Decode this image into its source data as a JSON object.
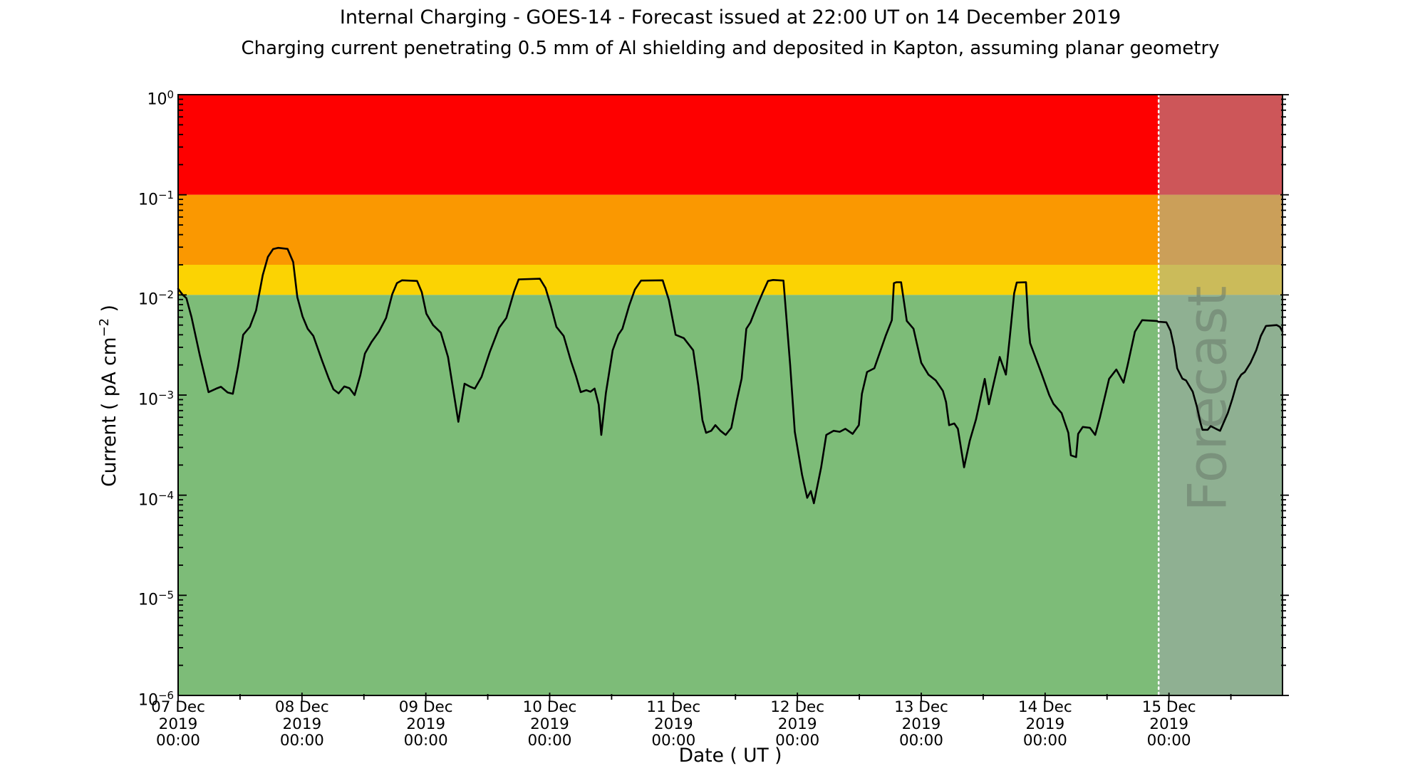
{
  "header": {
    "title": "Internal Charging - GOES-14 - Forecast issued at 22:00 UT on 14 December 2019",
    "subtitle": "Charging current penetrating 0.5 mm of Al shielding and deposited in Kapton, assuming planar geometry"
  },
  "axes": {
    "x": {
      "label": "Date ( UT )",
      "range_hours": [
        0,
        214
      ],
      "major_every_hours": 24,
      "minor_every_hours": 12,
      "ticks": [
        {
          "date": "07 Dec",
          "year": "2019",
          "time": "00:00"
        },
        {
          "date": "08 Dec",
          "year": "2019",
          "time": "00:00"
        },
        {
          "date": "09 Dec",
          "year": "2019",
          "time": "00:00"
        },
        {
          "date": "10 Dec",
          "year": "2019",
          "time": "00:00"
        },
        {
          "date": "11 Dec",
          "year": "2019",
          "time": "00:00"
        },
        {
          "date": "12 Dec",
          "year": "2019",
          "time": "00:00"
        },
        {
          "date": "13 Dec",
          "year": "2019",
          "time": "00:00"
        },
        {
          "date": "14 Dec",
          "year": "2019",
          "time": "00:00"
        },
        {
          "date": "15 Dec",
          "year": "2019",
          "time": "00:00"
        }
      ]
    },
    "y": {
      "label_prefix": "Current ( pA cm",
      "label_sup": "−2",
      "label_suffix": " )",
      "scale": "log",
      "range": [
        1e-06,
        1
      ],
      "tick_base": "10",
      "ticks": [
        {
          "e": 0,
          "t": "0"
        },
        {
          "e": -1,
          "t": "−1"
        },
        {
          "e": -2,
          "t": "−2"
        },
        {
          "e": -3,
          "t": "−3"
        },
        {
          "e": -4,
          "t": "−4"
        },
        {
          "e": -5,
          "t": "−5"
        },
        {
          "e": -6,
          "t": "−6"
        }
      ]
    }
  },
  "bands": [
    {
      "name": "red",
      "min": 0.1,
      "max": 1.0,
      "color": "#FE0000"
    },
    {
      "name": "orange",
      "min": 0.02,
      "max": 0.1,
      "color": "#FA9801"
    },
    {
      "name": "yellow",
      "min": 0.01,
      "max": 0.02,
      "color": "#FBD303"
    },
    {
      "name": "green",
      "min": 1e-06,
      "max": 0.01,
      "color": "#7DBC78"
    }
  ],
  "forecast": {
    "label": "Forecast",
    "start_hours": 190,
    "divider_color": "#ffffff",
    "overlay_color": "rgba(160,164,170,0.52)",
    "watermark_color": "#667466"
  },
  "line_color": "#000000",
  "chart_data": {
    "type": "line",
    "title": "Internal Charging - GOES-14 - Forecast issued at 22:00 UT on 14 December 2019",
    "subtitle": "Charging current penetrating 0.5 mm of Al shielding and deposited in Kapton, assuming planar geometry",
    "xlabel": "Date ( UT )",
    "ylabel": "Current ( pA cm^-2 )",
    "x_unit": "hours since 07 Dec 2019 00:00 UT",
    "x_range_hours": [
      0,
      214
    ],
    "y_scale": "log",
    "ylim": [
      1e-06,
      1
    ],
    "grid": false,
    "thresholds": {
      "red_above": 0.1,
      "orange": [
        0.02,
        0.1
      ],
      "yellow": [
        0.01,
        0.02
      ],
      "green_below": 0.01
    },
    "forecast_start_hours": 190,
    "series": [
      {
        "name": "observed",
        "points": [
          [
            0,
            0.0115
          ],
          [
            0.9,
            0.01
          ],
          [
            1.6,
            0.0093
          ],
          [
            2.6,
            0.006
          ],
          [
            4.2,
            0.0025
          ],
          [
            5.9,
            0.00107
          ],
          [
            7.4,
            0.00116
          ],
          [
            8.3,
            0.00121
          ],
          [
            9.6,
            0.00106
          ],
          [
            10.6,
            0.00103
          ],
          [
            11.6,
            0.0019
          ],
          [
            12.6,
            0.004
          ],
          [
            13.9,
            0.0048
          ],
          [
            15.1,
            0.007
          ],
          [
            16.4,
            0.0158
          ],
          [
            17.4,
            0.024
          ],
          [
            18.4,
            0.0287
          ],
          [
            19.4,
            0.0295
          ],
          [
            21.2,
            0.0288
          ],
          [
            22.3,
            0.0213
          ],
          [
            23.1,
            0.0095
          ],
          [
            24.1,
            0.0061
          ],
          [
            25.1,
            0.0046
          ],
          [
            26.2,
            0.0039
          ],
          [
            27.9,
            0.0022
          ],
          [
            29.2,
            0.00146
          ],
          [
            30.1,
            0.00114
          ],
          [
            31.1,
            0.00104
          ],
          [
            32.2,
            0.00122
          ],
          [
            33.2,
            0.00117
          ],
          [
            34.2,
            0.001
          ],
          [
            35.3,
            0.00158
          ],
          [
            36.2,
            0.0026
          ],
          [
            37.5,
            0.0034
          ],
          [
            38.9,
            0.0043
          ],
          [
            40.3,
            0.0059
          ],
          [
            41.5,
            0.0102
          ],
          [
            42.4,
            0.0131
          ],
          [
            43.4,
            0.014
          ],
          [
            46.3,
            0.0138
          ],
          [
            47.2,
            0.0107
          ],
          [
            48.1,
            0.0065
          ],
          [
            49.4,
            0.005
          ],
          [
            50.9,
            0.0042
          ],
          [
            52.3,
            0.0024
          ],
          [
            53.4,
            0.00105
          ],
          [
            54.3,
            0.00054
          ],
          [
            55.5,
            0.0013
          ],
          [
            56.5,
            0.00122
          ],
          [
            57.5,
            0.00116
          ],
          [
            58.8,
            0.00152
          ],
          [
            60.4,
            0.0027
          ],
          [
            62.2,
            0.0047
          ],
          [
            63.6,
            0.0059
          ],
          [
            65.1,
            0.0108
          ],
          [
            66,
            0.0143
          ],
          [
            70.1,
            0.0145
          ],
          [
            71.2,
            0.0117
          ],
          [
            72.2,
            0.0079
          ],
          [
            73.3,
            0.0048
          ],
          [
            74.7,
            0.0039
          ],
          [
            76.1,
            0.0022
          ],
          [
            77.1,
            0.00155
          ],
          [
            78,
            0.00107
          ],
          [
            79.1,
            0.00112
          ],
          [
            79.9,
            0.00108
          ],
          [
            80.7,
            0.00116
          ],
          [
            81.5,
            0.0008
          ],
          [
            82,
            0.0004
          ],
          [
            82.9,
            0.00105
          ],
          [
            84.2,
            0.0028
          ],
          [
            85.3,
            0.004
          ],
          [
            86.1,
            0.0046
          ],
          [
            87.4,
            0.0078
          ],
          [
            88.5,
            0.0113
          ],
          [
            89.7,
            0.0139
          ],
          [
            93.9,
            0.014
          ],
          [
            95.1,
            0.0089
          ],
          [
            96.4,
            0.004
          ],
          [
            98,
            0.0037
          ],
          [
            99.8,
            0.0028
          ],
          [
            100.8,
            0.00125
          ],
          [
            101.6,
            0.00056
          ],
          [
            102.3,
            0.00042
          ],
          [
            103.3,
            0.00044
          ],
          [
            104.1,
            0.0005
          ],
          [
            105.1,
            0.00044
          ],
          [
            106.1,
            0.0004
          ],
          [
            107.2,
            0.00047
          ],
          [
            108.2,
            0.00086
          ],
          [
            109.2,
            0.00146
          ],
          [
            110.1,
            0.0046
          ],
          [
            110.9,
            0.0053
          ],
          [
            112.1,
            0.0076
          ],
          [
            113.3,
            0.0106
          ],
          [
            114.3,
            0.0138
          ],
          [
            115.3,
            0.0141
          ],
          [
            117.3,
            0.0139
          ],
          [
            118.6,
            0.002
          ],
          [
            119.5,
            0.00043
          ],
          [
            120.9,
            0.00016
          ],
          [
            121.9,
            9.4e-05
          ],
          [
            122.6,
            0.00011
          ],
          [
            123.2,
            8.3e-05
          ],
          [
            124.6,
            0.00019
          ],
          [
            125.6,
            0.0004
          ],
          [
            127,
            0.00044
          ],
          [
            128.2,
            0.00043
          ],
          [
            129.3,
            0.00046
          ],
          [
            130.7,
            0.00041
          ],
          [
            131.9,
            0.0005
          ],
          [
            132.5,
            0.00103
          ],
          [
            133.5,
            0.0017
          ],
          [
            134.9,
            0.00185
          ],
          [
            137.1,
            0.0039
          ],
          [
            138.3,
            0.0056
          ],
          [
            138.7,
            0.0131
          ],
          [
            139.2,
            0.0134
          ],
          [
            140.1,
            0.0134
          ],
          [
            141.2,
            0.0055
          ],
          [
            142.5,
            0.0046
          ],
          [
            144,
            0.0021
          ],
          [
            145.4,
            0.0016
          ],
          [
            146.8,
            0.0014
          ],
          [
            148.2,
            0.0011
          ],
          [
            148.8,
            0.00085
          ],
          [
            149.4,
            0.0005
          ],
          [
            150.4,
            0.00052
          ],
          [
            151.1,
            0.00046
          ],
          [
            152.3,
            0.00019
          ],
          [
            153.4,
            0.00035
          ],
          [
            154.6,
            0.00057
          ],
          [
            156.3,
            0.00145
          ],
          [
            157.1,
            0.00081
          ],
          [
            159.2,
            0.0024
          ],
          [
            160.4,
            0.0016
          ],
          [
            161.2,
            0.004
          ],
          [
            162,
            0.0104
          ],
          [
            162.5,
            0.0133
          ],
          [
            164.3,
            0.0134
          ],
          [
            164.8,
            0.0048
          ],
          [
            165.1,
            0.0033
          ],
          [
            167.2,
            0.0017
          ],
          [
            168.8,
            0.001
          ],
          [
            169.6,
            0.00082
          ],
          [
            171.2,
            0.00066
          ],
          [
            172.5,
            0.00042
          ],
          [
            173,
            0.00025
          ],
          [
            174,
            0.00024
          ],
          [
            174.4,
            0.00041
          ],
          [
            175.3,
            0.00048
          ],
          [
            176.7,
            0.00047
          ],
          [
            177.7,
            0.0004
          ],
          [
            178.6,
            0.00059
          ],
          [
            180.4,
            0.00145
          ],
          [
            181.8,
            0.0018
          ],
          [
            183.2,
            0.00133
          ],
          [
            184,
            0.002
          ],
          [
            185.4,
            0.0043
          ],
          [
            186.8,
            0.0056
          ],
          [
            189.6,
            0.0055
          ],
          [
            190,
            0.0054
          ]
        ]
      },
      {
        "name": "forecast",
        "points": [
          [
            190,
            0.0054
          ],
          [
            191.5,
            0.00533
          ],
          [
            192.3,
            0.0044
          ],
          [
            193,
            0.003
          ],
          [
            193.6,
            0.00185
          ],
          [
            194.6,
            0.00146
          ],
          [
            195.3,
            0.0014
          ],
          [
            196.6,
            0.00108
          ],
          [
            197.4,
            0.00077
          ],
          [
            198.1,
            0.00053
          ],
          [
            198.5,
            0.00045
          ],
          [
            199.5,
            0.00045
          ],
          [
            200.1,
            0.00049
          ],
          [
            201.1,
            0.00046
          ],
          [
            201.9,
            0.00044
          ],
          [
            203.4,
            0.00066
          ],
          [
            204.3,
            0.00092
          ],
          [
            205.3,
            0.0014
          ],
          [
            206,
            0.0016
          ],
          [
            206.7,
            0.0017
          ],
          [
            207.8,
            0.0021
          ],
          [
            208.9,
            0.0028
          ],
          [
            209.8,
            0.0039
          ],
          [
            210.8,
            0.0049
          ],
          [
            212.9,
            0.005
          ],
          [
            213.5,
            0.0048
          ],
          [
            214,
            0.0043
          ]
        ]
      }
    ]
  }
}
